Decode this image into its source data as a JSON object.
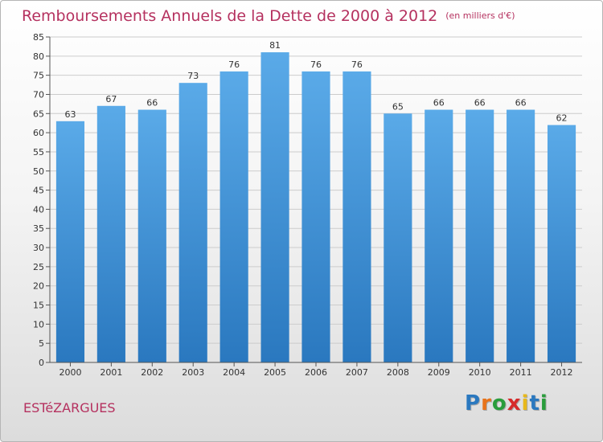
{
  "header": {
    "title": "Remboursements Annuels de la Dette de 2000 à 2012",
    "unit": "(en milliers d'€)"
  },
  "footer": {
    "commune": "ESTéZARGUES",
    "logo_text": "Proxiti"
  },
  "colors": {
    "title": "#b5315f",
    "bar_top": "#5aaae8",
    "bar_bottom": "#2a78bf",
    "grid": "#cccccc",
    "axis": "#555555"
  },
  "chart_data": {
    "type": "bar",
    "categories": [
      "2000",
      "2001",
      "2002",
      "2003",
      "2004",
      "2005",
      "2006",
      "2007",
      "2008",
      "2009",
      "2010",
      "2011",
      "2012"
    ],
    "values": [
      63,
      67,
      66,
      73,
      76,
      81,
      76,
      76,
      65,
      66,
      66,
      66,
      62
    ],
    "title": "Remboursements Annuels de la Dette de 2000 à 2012",
    "subtitle": "(en milliers d'€)",
    "ylim": [
      0,
      85
    ],
    "yticks": [
      0,
      5,
      10,
      15,
      20,
      25,
      30,
      35,
      40,
      45,
      50,
      55,
      60,
      65,
      70,
      75,
      80,
      85
    ],
    "grid": true,
    "legend": "none"
  }
}
